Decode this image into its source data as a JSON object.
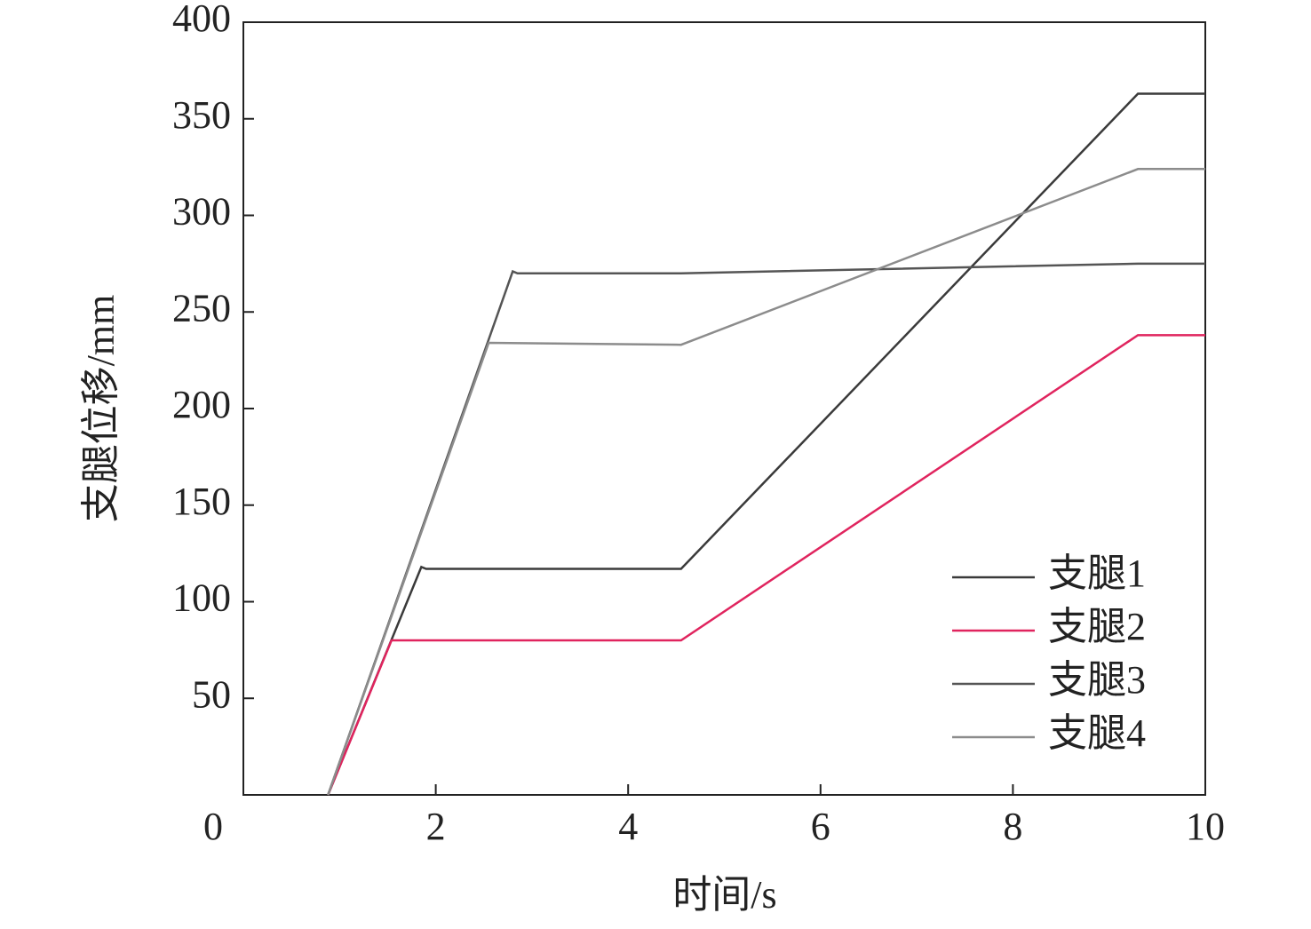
{
  "chart_data": {
    "type": "line",
    "x_label": "时间/s",
    "y_label": "支腿位移/mm",
    "xlim": [
      0,
      10
    ],
    "ylim": [
      0,
      400
    ],
    "xticks": [
      0,
      2,
      4,
      6,
      8,
      10
    ],
    "yticks": [
      50,
      100,
      150,
      200,
      250,
      300,
      350,
      400
    ],
    "legend": "lower right",
    "series": [
      {
        "name": "支腿1",
        "color": "#3a3a3a",
        "x": [
          0.88,
          1.85,
          1.9,
          4.55,
          9.3,
          10
        ],
        "values": [
          0,
          118,
          117,
          117,
          363,
          363
        ]
      },
      {
        "name": "支腿2",
        "color": "#e0245e",
        "x": [
          0.88,
          1.54,
          4.55,
          9.3,
          10
        ],
        "values": [
          0,
          80,
          80,
          238,
          238
        ]
      },
      {
        "name": "支腿3",
        "color": "#555555",
        "x": [
          0.88,
          2.8,
          2.85,
          4.55,
          9.3,
          10
        ],
        "values": [
          0,
          271,
          270,
          270,
          275,
          275
        ]
      },
      {
        "name": "支腿4",
        "color": "#8c8c8c",
        "x": [
          0.88,
          2.55,
          4.55,
          9.3,
          10
        ],
        "values": [
          0,
          234,
          233,
          324,
          324
        ]
      }
    ]
  }
}
